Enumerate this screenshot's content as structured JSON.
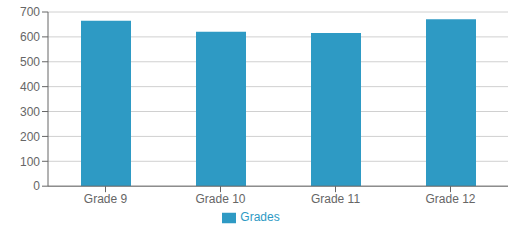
{
  "chart_data": {
    "type": "bar",
    "categories": [
      "Grade 9",
      "Grade 10",
      "Grade 11",
      "Grade 12"
    ],
    "series": [
      {
        "name": "Grades",
        "color": "#2E9AC4",
        "values": [
          665,
          621,
          616,
          671
        ]
      }
    ],
    "ylim": [
      0,
      700
    ],
    "yticks": [
      0,
      100,
      200,
      300,
      400,
      500,
      600,
      700
    ],
    "grid": true,
    "legend": "bottom"
  }
}
